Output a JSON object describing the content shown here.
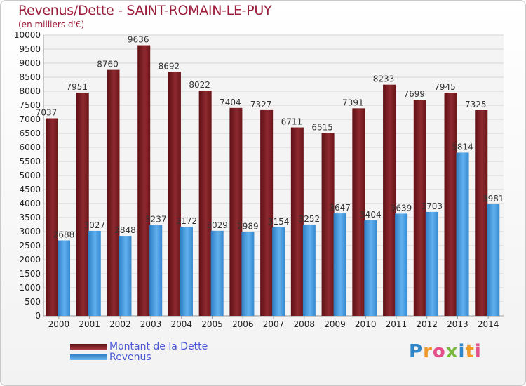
{
  "header": {
    "title": "Revenus/Dette - SAINT-ROMAIN-LE-PUY",
    "subtitle": "(en milliers d'€)"
  },
  "logo": {
    "text": "Proxiti"
  },
  "colors": {
    "debt": "#7a1d22",
    "debt_light": "#a33a40",
    "revenue": "#3a8fd6",
    "revenue_light": "#6fb7f0",
    "title": "#9c1e3c",
    "legend_text": "#4a57d6"
  },
  "chart_data": {
    "type": "bar",
    "categories": [
      "2000",
      "2001",
      "2002",
      "2003",
      "2004",
      "2005",
      "2006",
      "2007",
      "2008",
      "2009",
      "2010",
      "2011",
      "2012",
      "2013",
      "2014"
    ],
    "series": [
      {
        "name": "Montant de la Dette",
        "values": [
          7037,
          7951,
          8760,
          9636,
          8692,
          8022,
          7404,
          7327,
          6711,
          6515,
          7391,
          8233,
          7699,
          7945,
          7325
        ]
      },
      {
        "name": "Revenus",
        "values": [
          2688,
          3027,
          2848,
          3237,
          3172,
          3029,
          2989,
          3154,
          3252,
          3647,
          3404,
          3639,
          3703,
          5814,
          3981
        ]
      }
    ],
    "ylim": [
      0,
      10000
    ],
    "yticks": [
      0,
      500,
      1000,
      1500,
      2000,
      2500,
      3000,
      3500,
      4000,
      4500,
      5000,
      5500,
      6000,
      6500,
      7000,
      7500,
      8000,
      8500,
      9000,
      9500,
      10000
    ],
    "grid": true,
    "legend": "bottom-left"
  }
}
